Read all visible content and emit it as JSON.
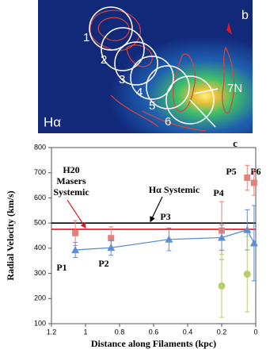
{
  "image": {
    "panel_label": "b",
    "region_labels": [
      "1",
      "2",
      "3",
      "4",
      "5",
      "6",
      "7N"
    ],
    "band_label": "Hα"
  },
  "chart_data": {
    "type": "scatter",
    "panel_label": "c",
    "x_label": "Distance along Filaments (kpc)",
    "y_label": "Radial Velocity (km/s)",
    "xlim": [
      1.2,
      0
    ],
    "xticks": [
      1.2,
      1,
      0.8,
      0.6,
      0.4,
      0.2,
      0
    ],
    "ylim": [
      100,
      800
    ],
    "yticks": [
      100,
      200,
      300,
      400,
      500,
      600,
      700,
      800
    ],
    "series": [
      {
        "color": "#e8807a",
        "marker": "square",
        "connect": false,
        "x": [
          1.06,
          0.85,
          0.2,
          0.05,
          0.01
        ],
        "values": [
          460,
          440,
          470,
          680,
          660
        ],
        "errors": [
          50,
          45,
          115,
          50,
          50
        ]
      },
      {
        "color": "#5b8fcf",
        "marker": "triangle",
        "connect": true,
        "x": [
          1.06,
          0.85,
          0.51,
          0.2,
          0.05,
          0.01
        ],
        "values": [
          393,
          402,
          435,
          442,
          473,
          420
        ],
        "errors": [
          30,
          30,
          45,
          50,
          80,
          150
        ]
      },
      {
        "color": "#b5cf6b",
        "marker": "circle",
        "connect": false,
        "x": [
          0.2,
          0.05
        ],
        "values": [
          250,
          297
        ],
        "errors": [
          125,
          150
        ]
      }
    ],
    "hlines": [
      {
        "value": 500,
        "color": "#000000"
      },
      {
        "value": 475,
        "color": "#e8141c"
      }
    ],
    "annotations": [
      "H20",
      "Masers",
      "Systemic",
      "Hα Systemic"
    ],
    "point_labels": [
      "P1",
      "P2",
      "P3",
      "P4",
      "P5",
      "P6"
    ]
  }
}
